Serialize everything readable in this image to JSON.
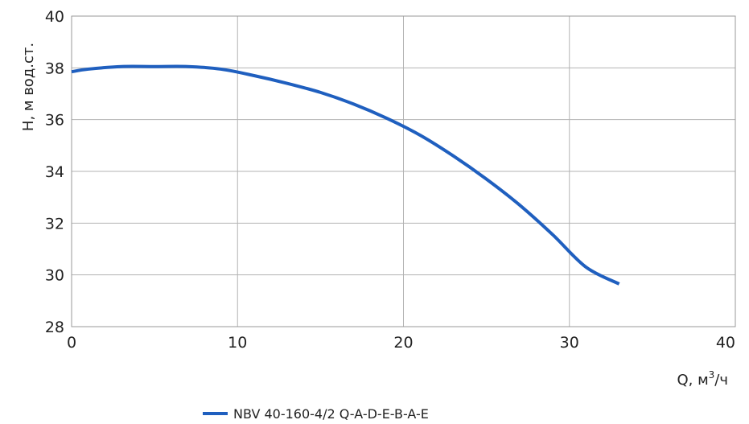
{
  "chart_data": {
    "type": "line",
    "title": "",
    "xlabel": "Q, м³/ч",
    "ylabel": "H, м вод.ст.",
    "xlim": [
      0,
      40
    ],
    "ylim": [
      28,
      40
    ],
    "xticks": [
      "0",
      "10",
      "20",
      "30",
      "40"
    ],
    "yticks": [
      "28",
      "30",
      "32",
      "34",
      "36",
      "38",
      "40"
    ],
    "grid": true,
    "legend_position": "bottom",
    "series": [
      {
        "name": "NBV 40-160-4/2 Q-A-D-E-B-A-E",
        "color": "#1f5fbf",
        "x": [
          0,
          1,
          3,
          5,
          7,
          9,
          11,
          13,
          15,
          17,
          19,
          21,
          23,
          25,
          27,
          29,
          31,
          33
        ],
        "y": [
          37.85,
          37.95,
          38.05,
          38.05,
          38.05,
          37.95,
          37.7,
          37.4,
          37.05,
          36.6,
          36.05,
          35.4,
          34.6,
          33.7,
          32.7,
          31.55,
          30.3,
          29.65
        ]
      }
    ]
  }
}
